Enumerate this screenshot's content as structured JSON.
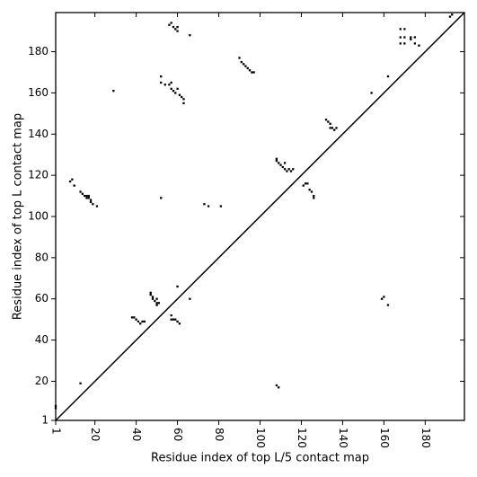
{
  "chart_data": {
    "type": "scatter",
    "xlabel": "Residue index of top L/5 contact map",
    "ylabel": "Residue index of top L contact map",
    "xlim": [
      1,
      199
    ],
    "ylim": [
      1,
      199
    ],
    "xticks": [
      1,
      20,
      40,
      60,
      80,
      100,
      120,
      140,
      160,
      180
    ],
    "yticks": [
      1,
      20,
      40,
      60,
      80,
      100,
      120,
      140,
      160,
      180
    ],
    "color": "#000000",
    "x": [
      1,
      1,
      108,
      109,
      160,
      159,
      162,
      66,
      13,
      8,
      9,
      10,
      13,
      14,
      15,
      16,
      16,
      17,
      17,
      18,
      18,
      19,
      21,
      29,
      52,
      52,
      56,
      57,
      58,
      59,
      60,
      60,
      66,
      52,
      54,
      56,
      57,
      57,
      58,
      59,
      60,
      61,
      62,
      63,
      63,
      73,
      75,
      81,
      90,
      91,
      92,
      93,
      94,
      95,
      96,
      97,
      108,
      108,
      109,
      110,
      111,
      112,
      112,
      113,
      114,
      115,
      116,
      121,
      122,
      123,
      124,
      125,
      126,
      126,
      132,
      133,
      134,
      134,
      135,
      136,
      137,
      154,
      162,
      168,
      170,
      168,
      170,
      168,
      170,
      173,
      173,
      175,
      175,
      177,
      192,
      193,
      38,
      39,
      40,
      41,
      42,
      43,
      44,
      47,
      47,
      48,
      48,
      49,
      50,
      50,
      50,
      51,
      57,
      57,
      58,
      59,
      60,
      61,
      60
    ],
    "y": [
      7,
      8,
      18,
      17,
      61,
      60,
      57,
      60,
      19,
      117,
      118,
      115,
      112,
      111,
      110,
      110,
      109,
      109,
      110,
      108,
      107,
      106,
      105,
      161,
      109,
      168,
      193,
      194,
      192,
      191,
      190,
      192,
      188,
      165,
      164,
      164,
      165,
      162,
      161,
      160,
      162,
      159,
      158,
      157,
      155,
      106,
      105,
      105,
      177,
      175,
      174,
      173,
      172,
      171,
      170,
      170,
      127,
      128,
      126,
      125,
      124,
      123,
      126,
      122,
      123,
      122,
      123,
      115,
      116,
      116,
      113,
      112,
      110,
      109,
      147,
      146,
      145,
      143,
      143,
      142,
      143,
      160,
      168,
      191,
      191,
      187,
      187,
      184,
      184,
      187,
      186,
      187,
      184,
      183,
      197,
      198,
      51,
      51,
      50,
      49,
      48,
      49,
      49,
      63,
      62,
      61,
      60,
      59,
      60,
      58,
      57,
      58,
      52,
      50,
      50,
      50,
      49,
      48,
      66
    ]
  }
}
